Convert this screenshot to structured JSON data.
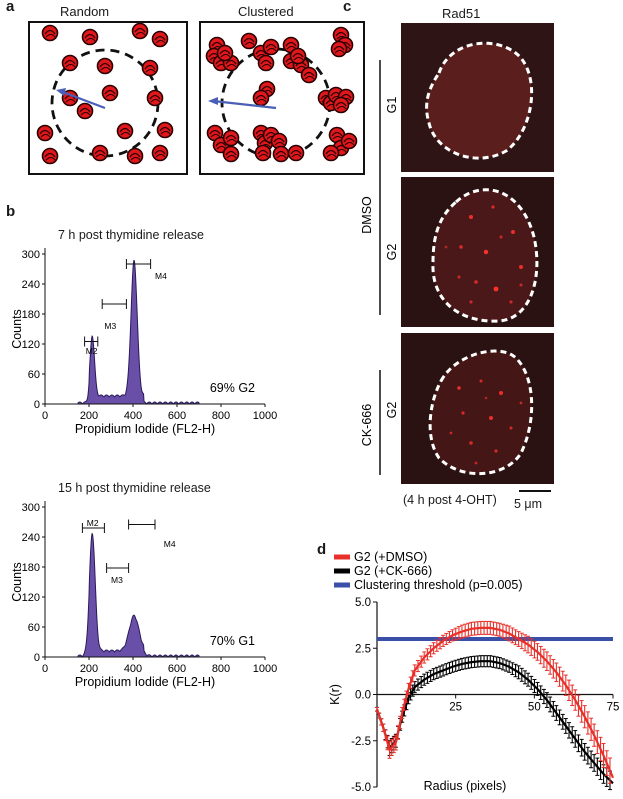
{
  "panel_a": {
    "label": "a",
    "titles": [
      "Random",
      "Clustered"
    ]
  },
  "panel_b": {
    "label": "b",
    "colors": {
      "fill": "#6a4fa8",
      "line": "#2a1a5a"
    },
    "histograms": [
      {
        "title": "7 h post thymidine release",
        "ylabel": "Counts",
        "xlabel": "Propidium Iodide (FL2-H)",
        "yticks": [
          "0",
          "60",
          "120",
          "180",
          "240",
          "300"
        ],
        "xticks": [
          "0",
          "200",
          "400",
          "600",
          "800",
          "1000"
        ],
        "gates": [
          "M2",
          "M3",
          "M4"
        ],
        "annotation": "69% G2"
      },
      {
        "title": "15 h post thymidine release",
        "ylabel": "Counts",
        "xlabel": "Propidium Iodide (FL2-H)",
        "yticks": [
          "0",
          "60",
          "120",
          "180",
          "240",
          "300"
        ],
        "xticks": [
          "0",
          "200",
          "400",
          "600",
          "800",
          "1000"
        ],
        "gates": [
          "M2",
          "M3",
          "M4"
        ],
        "annotation": "70% G1"
      }
    ]
  },
  "panel_c": {
    "label": "c",
    "title": "Rad51",
    "treatments": [
      "DMSO",
      "CK-666"
    ],
    "phases": [
      "G1",
      "G2",
      "G2"
    ],
    "footnote": "(4 h post 4-OHT)",
    "scalebar": "5 μm"
  },
  "panel_d": {
    "label": "d",
    "legend": [
      "G2 (+DMSO)",
      "G2 (+CK-666)",
      "Clustering threshold (p=0.005)"
    ],
    "colors": {
      "dmso": "#e8302a",
      "ck666": "#000000",
      "threshold": "#3a4fa8"
    },
    "chart_data": {
      "type": "line",
      "xlabel": "Radius (pixels)",
      "ylabel": "K(r)",
      "xlim": [
        0,
        75
      ],
      "ylim": [
        -5,
        5
      ],
      "xticks": [
        "25",
        "50",
        "75"
      ],
      "yticks": [
        "5.0",
        "2.5",
        "0.0",
        "-2.5",
        "-5.0"
      ],
      "threshold": 3.0,
      "series": [
        {
          "name": "G2 (+DMSO)",
          "x": [
            0,
            2,
            4,
            6,
            8,
            10,
            12,
            15,
            18,
            21,
            24,
            27,
            30,
            33,
            36,
            39,
            42,
            45,
            48,
            51,
            54,
            57,
            60,
            63,
            66,
            69,
            72,
            75
          ],
          "y": [
            -0.8,
            -1.8,
            -3.0,
            -2.6,
            -1.0,
            0.3,
            1.3,
            2.0,
            2.5,
            2.9,
            3.2,
            3.4,
            3.55,
            3.6,
            3.6,
            3.5,
            3.3,
            3.0,
            2.7,
            2.3,
            1.8,
            1.2,
            0.5,
            -0.3,
            -1.2,
            -2.2,
            -3.3,
            -4.5
          ],
          "err": [
            0.1,
            0.2,
            0.45,
            0.4,
            0.3,
            0.3,
            0.3,
            0.3,
            0.3,
            0.3,
            0.3,
            0.35,
            0.35,
            0.35,
            0.35,
            0.35,
            0.4,
            0.4,
            0.45,
            0.45,
            0.5,
            0.5,
            0.55,
            0.55,
            0.6,
            0.6,
            0.65,
            0.7
          ]
        },
        {
          "name": "G2 (+CK-666)",
          "x": [
            0,
            2,
            4,
            6,
            8,
            10,
            12,
            15,
            18,
            21,
            24,
            27,
            30,
            33,
            36,
            39,
            42,
            45,
            48,
            51,
            54,
            57,
            60,
            63,
            66,
            69,
            72,
            75
          ],
          "y": [
            -0.8,
            -1.8,
            -2.9,
            -2.5,
            -1.2,
            -0.2,
            0.4,
            0.8,
            1.1,
            1.3,
            1.5,
            1.65,
            1.75,
            1.8,
            1.8,
            1.7,
            1.5,
            1.2,
            0.8,
            0.3,
            -0.3,
            -1.0,
            -1.7,
            -2.4,
            -3.1,
            -3.7,
            -4.3,
            -4.8
          ],
          "err": [
            0.1,
            0.2,
            0.4,
            0.35,
            0.3,
            0.3,
            0.3,
            0.3,
            0.3,
            0.3,
            0.3,
            0.3,
            0.3,
            0.3,
            0.3,
            0.3,
            0.3,
            0.35,
            0.35,
            0.35,
            0.4,
            0.4,
            0.4,
            0.45,
            0.45,
            0.45,
            0.5,
            0.5
          ]
        }
      ]
    }
  }
}
